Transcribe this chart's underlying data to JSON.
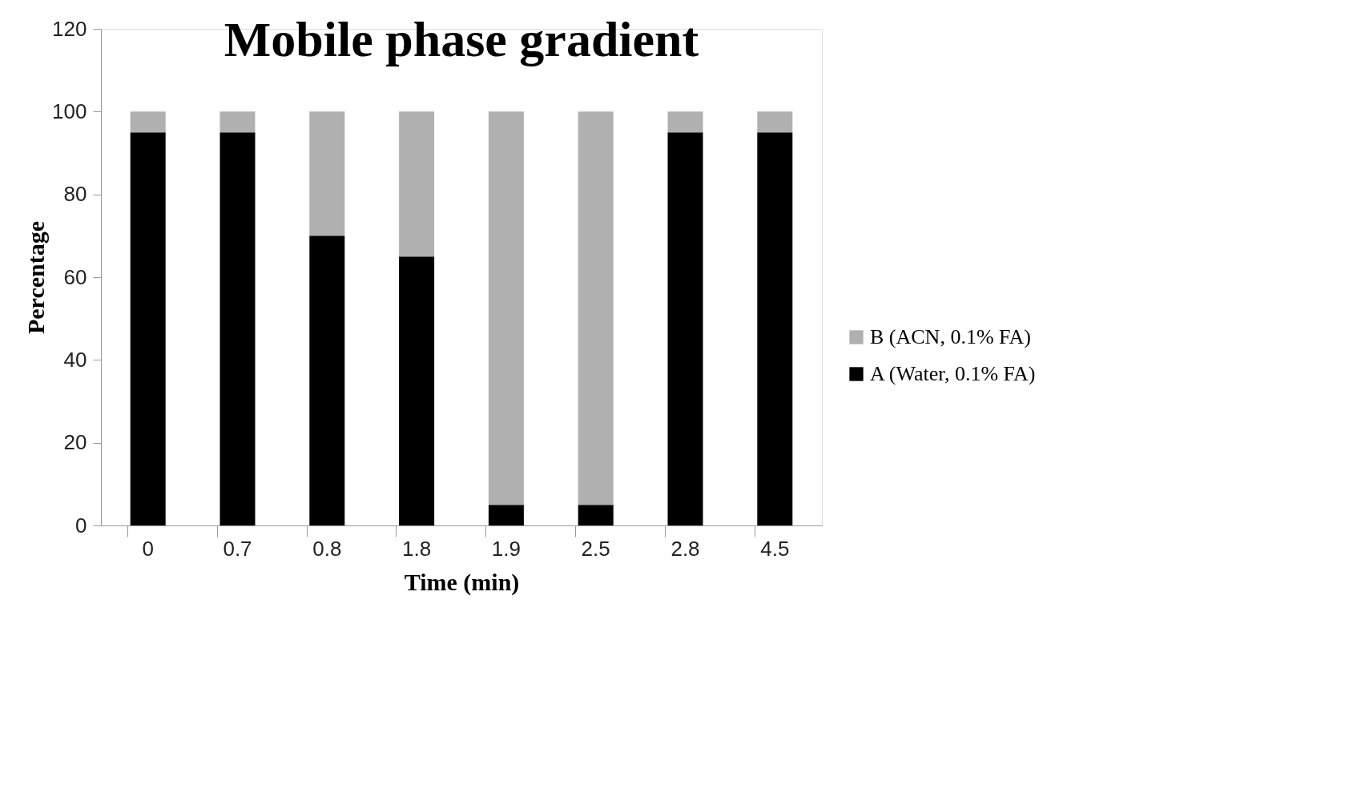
{
  "chart_data": {
    "type": "bar",
    "title": "Mobile phase gradient",
    "xlabel": "Time (min)",
    "ylabel": "Percentage",
    "categories": [
      "0",
      "0.7",
      "0.8",
      "1.8",
      "1.9",
      "2.5",
      "2.8",
      "4.5"
    ],
    "stacked": true,
    "series": [
      {
        "name": "A (Water, 0.1% FA)",
        "color": "#000000",
        "values": [
          95,
          95,
          70,
          65,
          5,
          5,
          95,
          95
        ]
      },
      {
        "name": "B (ACN, 0.1% FA)",
        "color": "#b0b0b0",
        "values": [
          5,
          5,
          30,
          35,
          95,
          95,
          5,
          5
        ]
      }
    ],
    "ylim": [
      0,
      120
    ],
    "yticks": [
      0,
      20,
      40,
      60,
      80,
      100,
      120
    ],
    "grid": false,
    "legend": "right"
  }
}
